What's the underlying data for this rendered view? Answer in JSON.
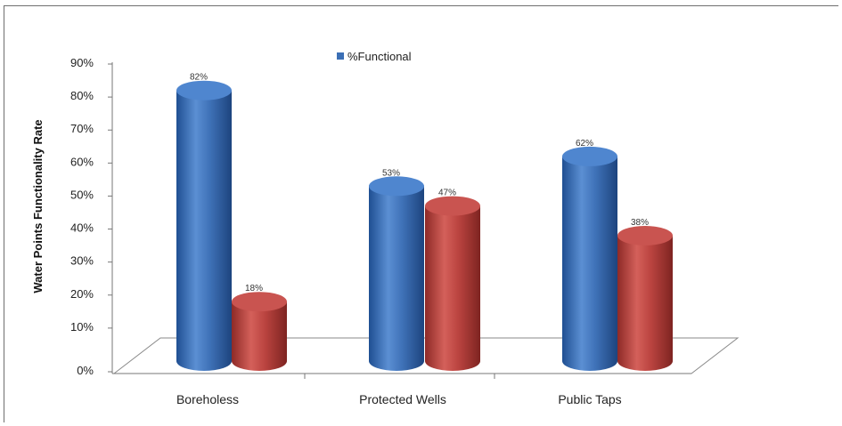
{
  "chart_data": {
    "type": "bar",
    "categories": [
      "Boreholess",
      "Protected Wells",
      "Public Taps"
    ],
    "series": [
      {
        "name": "%Functional",
        "values": [
          82,
          53,
          62
        ],
        "labels": [
          "82%",
          "53%",
          "62%"
        ],
        "color": "#3b6fb5"
      },
      {
        "values": [
          18,
          47,
          38
        ],
        "labels": [
          "18%",
          "47%",
          "38%"
        ],
        "color": "#b9413c"
      }
    ],
    "ylabel": "Water Points Functionality Rate",
    "ylim": [
      0,
      90
    ],
    "yticks": [
      "0%",
      "10%",
      "20%",
      "30%",
      "40%",
      "50%",
      "60%",
      "70%",
      "80%",
      "90%"
    ],
    "legend": "top-center",
    "style": "3d-cylinder"
  }
}
